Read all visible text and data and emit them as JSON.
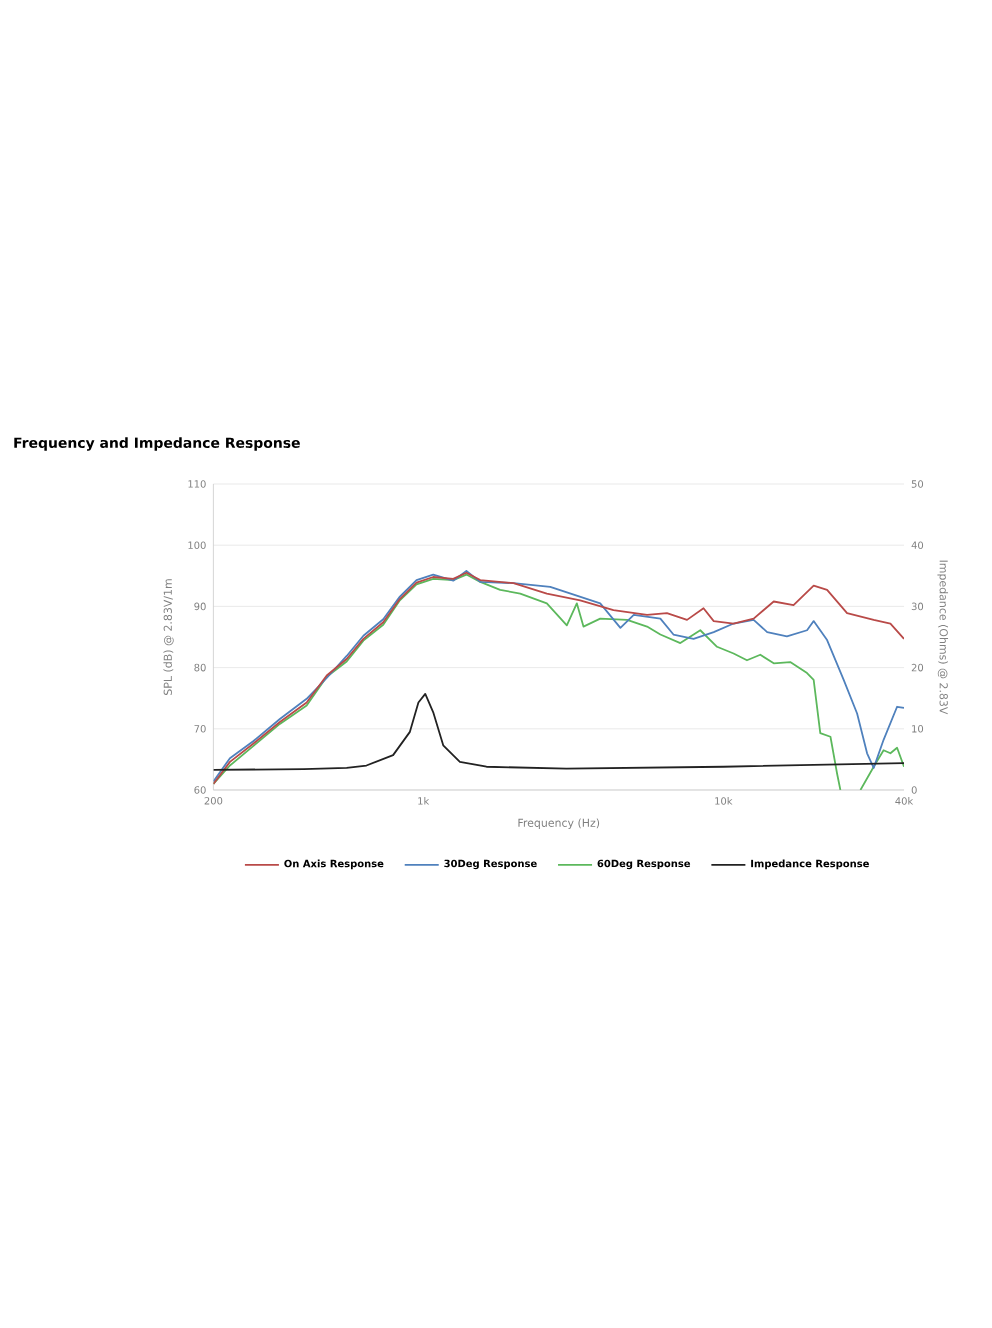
{
  "chart_data": {
    "type": "line",
    "title": "Frequency and Impedance Response",
    "xlabel": "Frequency (Hz)",
    "ylabel": "SPL (dB) @ 2.83V/1m",
    "y2label": "Impedance (Ohms) @ 2.83V",
    "log": "x",
    "xlim": [
      200,
      40000
    ],
    "xticks": [
      200,
      {
        "value": 1000,
        "label": "1k"
      },
      {
        "value": 10000,
        "label": "10k"
      },
      {
        "value": 40000,
        "label": "40k"
      }
    ],
    "ylim": [
      60,
      110
    ],
    "yticks": [
      60,
      70,
      80,
      90,
      100,
      110
    ],
    "y2lim": [
      0,
      50
    ],
    "y2ticks": [
      0,
      10,
      20,
      30,
      40,
      50
    ],
    "grid": "y",
    "legend": "bottom",
    "line_style": "solid",
    "marker": "none",
    "series": [
      {
        "name": "On Axis Response",
        "color": "#b94a48",
        "x": [
          200,
          227,
          272,
          333,
          409,
          477,
          556,
          632,
          736,
          836,
          950,
          1080,
          1259,
          1393,
          1549,
          2000,
          2582,
          3334,
          4305,
          5570,
          6490,
          7570,
          8590,
          9290,
          10820,
          12620,
          14720,
          17140,
          20000,
          22170,
          25840,
          31700,
          36040,
          40000
        ],
        "values": [
          61,
          64.6,
          67.6,
          71.1,
          74.3,
          78.7,
          81.4,
          84.7,
          87.4,
          91.2,
          93.9,
          94.8,
          94.5,
          95.5,
          94.3,
          93.8,
          92.1,
          91,
          89.4,
          88.6,
          88.9,
          87.8,
          89.7,
          87.6,
          87.2,
          88,
          90.8,
          90.2,
          93.4,
          92.7,
          88.9,
          87.8,
          87.2,
          84.7
        ]
      },
      {
        "name": "30Deg Response",
        "color": "#4f81bd",
        "x": [
          200,
          227,
          272,
          333,
          409,
          477,
          556,
          632,
          736,
          836,
          950,
          1080,
          1259,
          1393,
          1549,
          2000,
          2650,
          3890,
          4540,
          5030,
          6170,
          6820,
          7960,
          9290,
          10820,
          12620,
          14000,
          16290,
          19010,
          20000,
          22170,
          25180,
          27910,
          30130,
          31700,
          34200,
          37930,
          40000
        ],
        "values": [
          61.4,
          65.2,
          68,
          71.6,
          74.9,
          78.3,
          81.9,
          85.2,
          87.9,
          91.6,
          94.3,
          95.2,
          94.2,
          95.8,
          94,
          93.8,
          93.2,
          90.5,
          86.5,
          88.6,
          88,
          85.4,
          84.7,
          85.8,
          87.2,
          87.8,
          85.8,
          85.1,
          86.1,
          87.6,
          84.5,
          78,
          72.5,
          66,
          63.6,
          68.2,
          73.6,
          73.4
        ]
      },
      {
        "name": "60Deg Response",
        "color": "#5cb85c",
        "x": [
          200,
          227,
          272,
          333,
          409,
          477,
          556,
          632,
          736,
          836,
          950,
          1080,
          1259,
          1393,
          1549,
          1805,
          2105,
          2582,
          3010,
          3250,
          3420,
          3890,
          4780,
          5570,
          6170,
          7190,
          8380,
          9530,
          10820,
          11990,
          13280,
          14720,
          16710,
          19010,
          20000,
          21040,
          22750,
          23930,
          24550,
          26000,
          28640,
          31700,
          34200,
          36040,
          37930,
          40000
        ],
        "values": [
          61,
          64,
          67.2,
          70.8,
          73.8,
          78.5,
          81,
          84.4,
          87,
          91,
          93.6,
          94.5,
          94.3,
          95.2,
          94,
          92.7,
          92.1,
          90.5,
          86.9,
          90.5,
          86.7,
          88,
          87.8,
          86.7,
          85.4,
          84,
          86.1,
          83.4,
          82.3,
          81.2,
          82.1,
          80.7,
          80.9,
          79.1,
          78,
          69.3,
          68.7,
          62.7,
          60,
          null,
          60,
          63.8,
          66.5,
          66,
          66.9,
          63.8
        ]
      },
      {
        "name": "Impedance Response",
        "color": "#222222",
        "axis": "y2",
        "x": [
          200,
          400,
          556,
          647,
          794,
          903,
          964,
          1016,
          1080,
          1166,
          1325,
          1625,
          3000,
          10000,
          40000
        ],
        "values": [
          3.3,
          3.4,
          3.6,
          4,
          5.7,
          9.5,
          14.3,
          15.7,
          12.7,
          7.3,
          4.6,
          3.8,
          3.5,
          3.8,
          4.4
        ]
      }
    ]
  }
}
